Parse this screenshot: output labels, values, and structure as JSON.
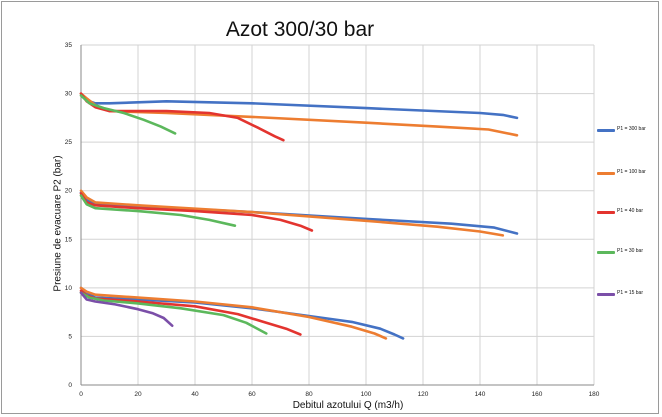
{
  "chart_data": {
    "type": "line",
    "title": "Azot 300/30 bar",
    "xlabel": "Debitul azotului Q (m3/h)",
    "ylabel": "Presiune de evacuare P2 (bar)",
    "xlim": [
      0,
      180
    ],
    "ylim": [
      0,
      35
    ],
    "xticks": [
      "0",
      "20",
      "40",
      "60",
      "80",
      "100",
      "120",
      "140",
      "160",
      "180"
    ],
    "yticks": [
      "0",
      "5",
      "10",
      "15",
      "20",
      "25",
      "30",
      "35"
    ],
    "grid": true,
    "legend_position": "right",
    "series": [
      {
        "name": "P1 = 300 bar",
        "color": "#4472c4",
        "groups": [
          [
            [
              0,
              30.0
            ],
            [
              2,
              29.3
            ],
            [
              5,
              29.0
            ],
            [
              10,
              29.0
            ],
            [
              20,
              29.1
            ],
            [
              30,
              29.2
            ],
            [
              60,
              29.0
            ],
            [
              100,
              28.5
            ],
            [
              140,
              28.0
            ],
            [
              148,
              27.8
            ],
            [
              153,
              27.5
            ]
          ],
          [
            [
              0,
              19.8
            ],
            [
              2,
              19.0
            ],
            [
              5,
              18.7
            ],
            [
              20,
              18.4
            ],
            [
              60,
              17.8
            ],
            [
              100,
              17.1
            ],
            [
              130,
              16.6
            ],
            [
              145,
              16.2
            ],
            [
              153,
              15.6
            ]
          ],
          [
            [
              0,
              10.0
            ],
            [
              2,
              9.5
            ],
            [
              5,
              9.0
            ],
            [
              20,
              8.8
            ],
            [
              40,
              8.5
            ],
            [
              60,
              7.9
            ],
            [
              80,
              7.1
            ],
            [
              95,
              6.5
            ],
            [
              105,
              5.8
            ],
            [
              110,
              5.2
            ],
            [
              113,
              4.8
            ]
          ]
        ]
      },
      {
        "name": "P1 = 100 bar",
        "color": "#ed7d31",
        "groups": [
          [
            [
              0,
              30.0
            ],
            [
              2,
              29.5
            ],
            [
              5,
              28.8
            ],
            [
              10,
              28.2
            ],
            [
              30,
              28.0
            ],
            [
              60,
              27.6
            ],
            [
              100,
              27.0
            ],
            [
              125,
              26.6
            ],
            [
              143,
              26.3
            ],
            [
              153,
              25.7
            ]
          ],
          [
            [
              0,
              20.0
            ],
            [
              2,
              19.3
            ],
            [
              5,
              18.8
            ],
            [
              20,
              18.5
            ],
            [
              60,
              17.8
            ],
            [
              100,
              16.9
            ],
            [
              125,
              16.3
            ],
            [
              140,
              15.8
            ],
            [
              148,
              15.4
            ]
          ],
          [
            [
              0,
              10.0
            ],
            [
              2,
              9.6
            ],
            [
              5,
              9.3
            ],
            [
              20,
              9.0
            ],
            [
              40,
              8.6
            ],
            [
              60,
              8.0
            ],
            [
              80,
              7.0
            ],
            [
              95,
              6.0
            ],
            [
              103,
              5.3
            ],
            [
              107,
              4.8
            ]
          ]
        ]
      },
      {
        "name": "P1 = 40 bar",
        "color": "#e3342f",
        "groups": [
          [
            [
              0,
              30.0
            ],
            [
              2,
              29.2
            ],
            [
              5,
              28.6
            ],
            [
              10,
              28.2
            ],
            [
              30,
              28.2
            ],
            [
              45,
              28.0
            ],
            [
              55,
              27.5
            ],
            [
              62,
              26.5
            ],
            [
              68,
              25.6
            ],
            [
              71,
              25.2
            ]
          ],
          [
            [
              0,
              19.7
            ],
            [
              2,
              18.8
            ],
            [
              5,
              18.5
            ],
            [
              20,
              18.2
            ],
            [
              40,
              17.9
            ],
            [
              60,
              17.5
            ],
            [
              70,
              17.0
            ],
            [
              77,
              16.4
            ],
            [
              81,
              15.9
            ]
          ],
          [
            [
              0,
              9.7
            ],
            [
              2,
              9.2
            ],
            [
              5,
              8.9
            ],
            [
              20,
              8.6
            ],
            [
              40,
              8.1
            ],
            [
              55,
              7.3
            ],
            [
              65,
              6.4
            ],
            [
              72,
              5.8
            ],
            [
              77,
              5.2
            ]
          ]
        ]
      },
      {
        "name": "P1 = 30 bar",
        "color": "#5cb85c",
        "groups": [
          [
            [
              0,
              29.8
            ],
            [
              3,
              29.0
            ],
            [
              8,
              28.5
            ],
            [
              15,
              28.0
            ],
            [
              22,
              27.3
            ],
            [
              28,
              26.6
            ],
            [
              33,
              25.9
            ]
          ],
          [
            [
              0,
              19.5
            ],
            [
              2,
              18.6
            ],
            [
              5,
              18.2
            ],
            [
              20,
              17.9
            ],
            [
              35,
              17.5
            ],
            [
              45,
              17.0
            ],
            [
              54,
              16.4
            ]
          ],
          [
            [
              0,
              9.5
            ],
            [
              3,
              9.0
            ],
            [
              8,
              8.7
            ],
            [
              20,
              8.4
            ],
            [
              35,
              7.9
            ],
            [
              50,
              7.2
            ],
            [
              58,
              6.4
            ],
            [
              65,
              5.3
            ]
          ]
        ]
      },
      {
        "name": "P1 = 15 bar",
        "color": "#7b4fa8",
        "groups": [
          [
            [
              0,
              9.5
            ],
            [
              2,
              8.8
            ],
            [
              5,
              8.6
            ],
            [
              12,
              8.3
            ],
            [
              20,
              7.8
            ],
            [
              25,
              7.4
            ],
            [
              29,
              6.9
            ],
            [
              32,
              6.1
            ]
          ]
        ]
      }
    ]
  }
}
